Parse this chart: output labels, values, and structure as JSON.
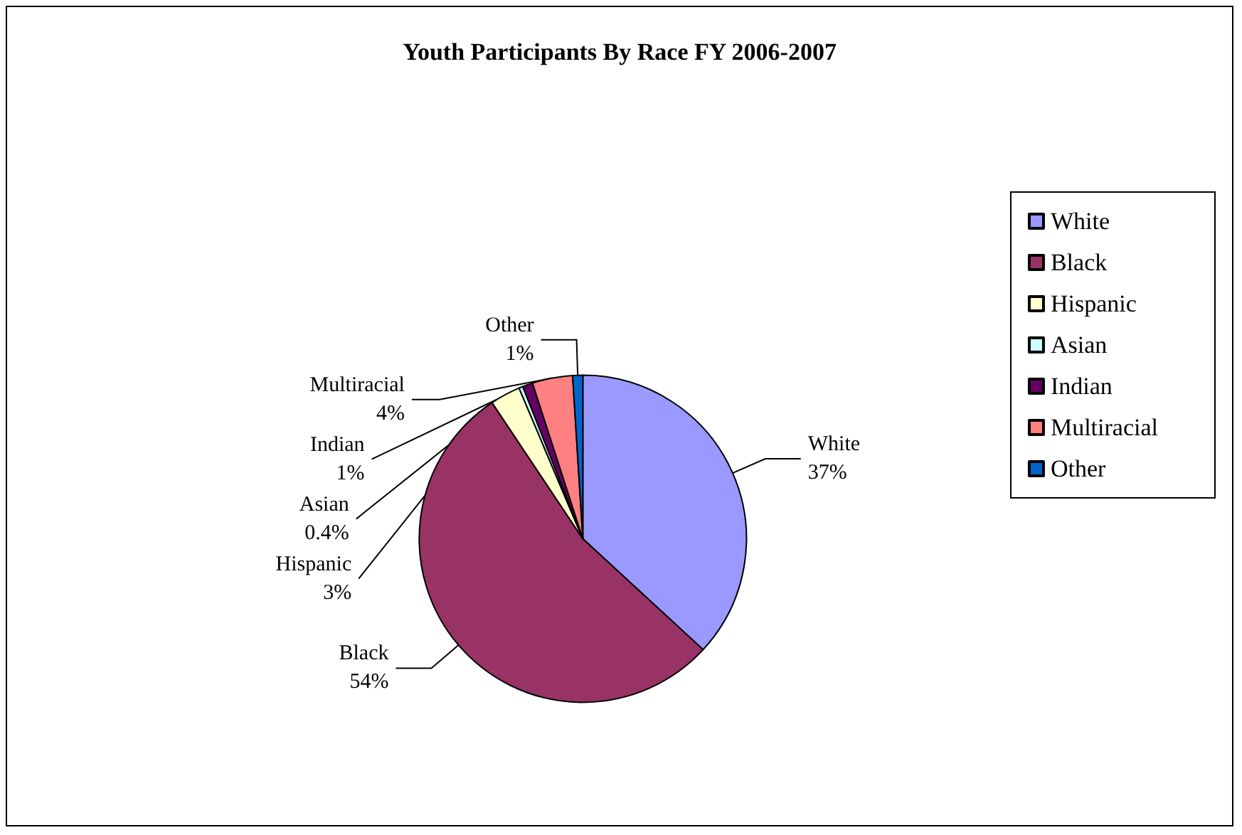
{
  "chart_data": {
    "type": "pie",
    "title": "Youth Participants By Race FY 2006-2007",
    "categories": [
      "White",
      "Black",
      "Hispanic",
      "Asian",
      "Indian",
      "Multiracial",
      "Other"
    ],
    "values": [
      37,
      54,
      3,
      0.4,
      1,
      4,
      1
    ],
    "value_labels": [
      "37%",
      "54%",
      "3%",
      "0.4%",
      "1%",
      "4%",
      "1%"
    ],
    "colors": [
      "#9999ff",
      "#993366",
      "#ffffcc",
      "#ccffff",
      "#660066",
      "#ff8080",
      "#0066cc"
    ],
    "legend": "right"
  }
}
